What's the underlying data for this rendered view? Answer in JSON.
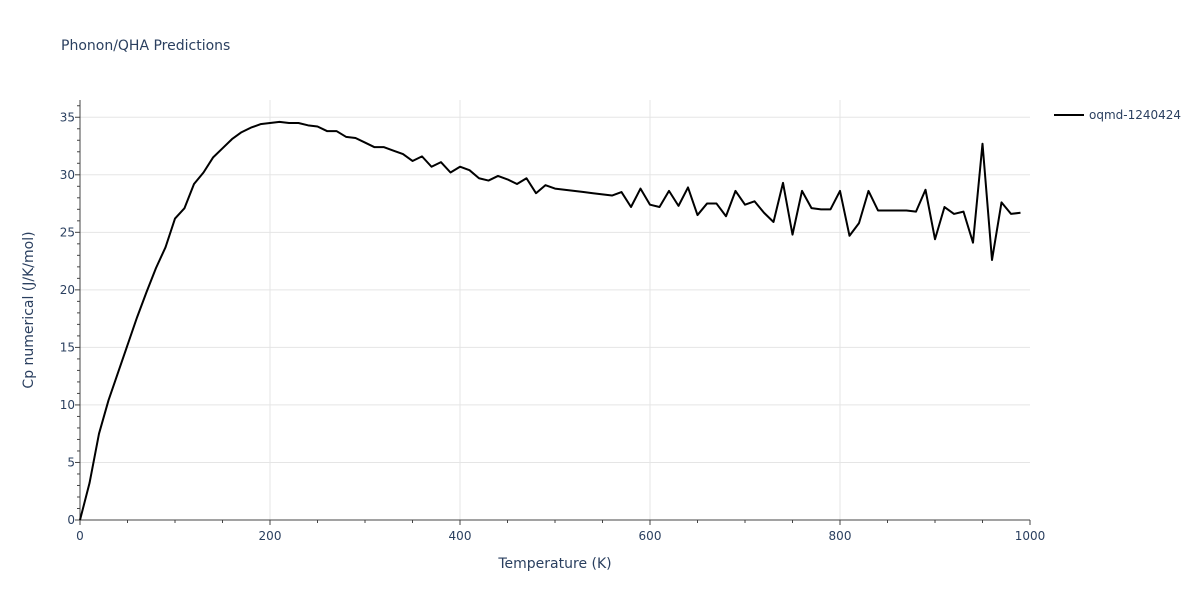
{
  "chart_data": {
    "type": "line",
    "title": "Phonon/QHA Predictions",
    "xlabel": "Temperature (K)",
    "ylabel": "Cp numerical (J/K/mol)",
    "xlim": [
      0,
      1000
    ],
    "ylim": [
      0,
      36.5
    ],
    "xticks": [
      0,
      200,
      400,
      600,
      800,
      1000
    ],
    "yticks": [
      0,
      5,
      10,
      15,
      20,
      25,
      30,
      35
    ],
    "grid": true,
    "legend_position": "top-right",
    "series": [
      {
        "name": "oqmd-1240424",
        "color": "#000000",
        "x": [
          0,
          10,
          20,
          30,
          40,
          50,
          60,
          70,
          80,
          90,
          100,
          110,
          120,
          130,
          140,
          150,
          160,
          170,
          180,
          190,
          200,
          210,
          220,
          230,
          240,
          250,
          260,
          270,
          280,
          290,
          300,
          310,
          320,
          330,
          340,
          350,
          360,
          370,
          380,
          390,
          400,
          410,
          420,
          430,
          440,
          450,
          460,
          470,
          480,
          490,
          500,
          510,
          520,
          530,
          540,
          550,
          560,
          570,
          580,
          590,
          600,
          610,
          620,
          630,
          640,
          650,
          660,
          670,
          680,
          690,
          700,
          710,
          720,
          730,
          740,
          750,
          760,
          770,
          780,
          790,
          800,
          810,
          820,
          830,
          840,
          850,
          860,
          870,
          880,
          890,
          900,
          910,
          920,
          930,
          940,
          950,
          960,
          970,
          980,
          990
        ],
        "y": [
          0,
          3.2,
          7.5,
          10.4,
          12.8,
          15.2,
          17.6,
          19.8,
          21.9,
          23.7,
          26.2,
          27.1,
          29.2,
          30.2,
          31.5,
          32.3,
          33.1,
          33.7,
          34.1,
          34.4,
          34.5,
          34.6,
          34.5,
          34.5,
          34.3,
          34.2,
          33.8,
          33.8,
          33.3,
          33.2,
          32.8,
          32.4,
          32.4,
          32.1,
          31.8,
          31.2,
          31.6,
          30.7,
          31.1,
          30.2,
          30.7,
          30.4,
          29.7,
          29.5,
          29.9,
          29.6,
          29.2,
          29.7,
          28.4,
          29.1,
          28.8,
          28.7,
          28.6,
          28.5,
          28.4,
          28.3,
          28.2,
          28.5,
          27.2,
          28.8,
          27.4,
          27.2,
          28.6,
          27.3,
          28.9,
          26.5,
          27.5,
          27.5,
          26.4,
          28.6,
          27.4,
          27.7,
          26.7,
          25.9,
          29.3,
          24.8,
          28.6,
          27.1,
          27.0,
          27.0,
          28.6,
          24.7,
          25.8,
          28.6,
          26.9,
          26.9,
          26.9,
          26.9,
          26.8,
          28.7,
          24.4,
          27.2,
          26.6,
          26.8,
          24.1,
          32.7,
          22.6,
          27.6,
          26.6,
          26.7
        ]
      }
    ]
  }
}
